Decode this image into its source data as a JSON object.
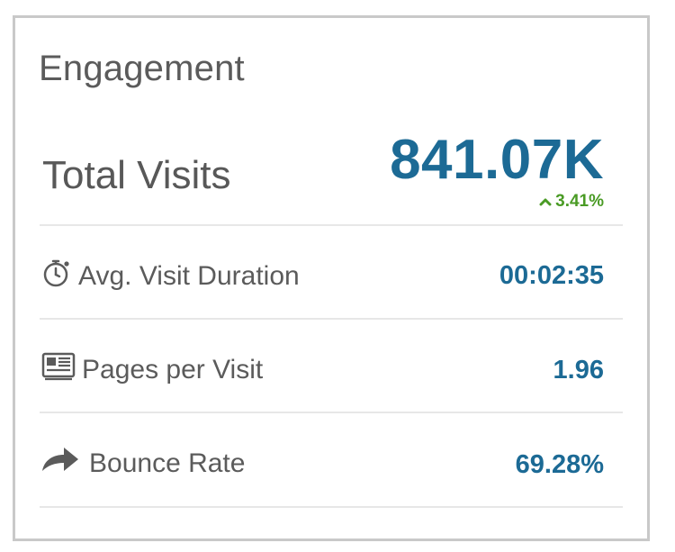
{
  "card": {
    "title": "Engagement",
    "total": {
      "label": "Total Visits",
      "value": "841.07K",
      "change": "3.41%",
      "change_direction": "up",
      "change_color": "#4a9b25"
    },
    "metrics": [
      {
        "icon": "stopwatch-icon",
        "label": "Avg. Visit Duration",
        "value": "00:02:35"
      },
      {
        "icon": "pages-icon",
        "label": "Pages per Visit",
        "value": "1.96"
      },
      {
        "icon": "share-arrow-icon",
        "label": "Bounce Rate",
        "value": "69.28%"
      }
    ],
    "value_color": "#1c6a95",
    "label_color": "#5b5b5b"
  }
}
